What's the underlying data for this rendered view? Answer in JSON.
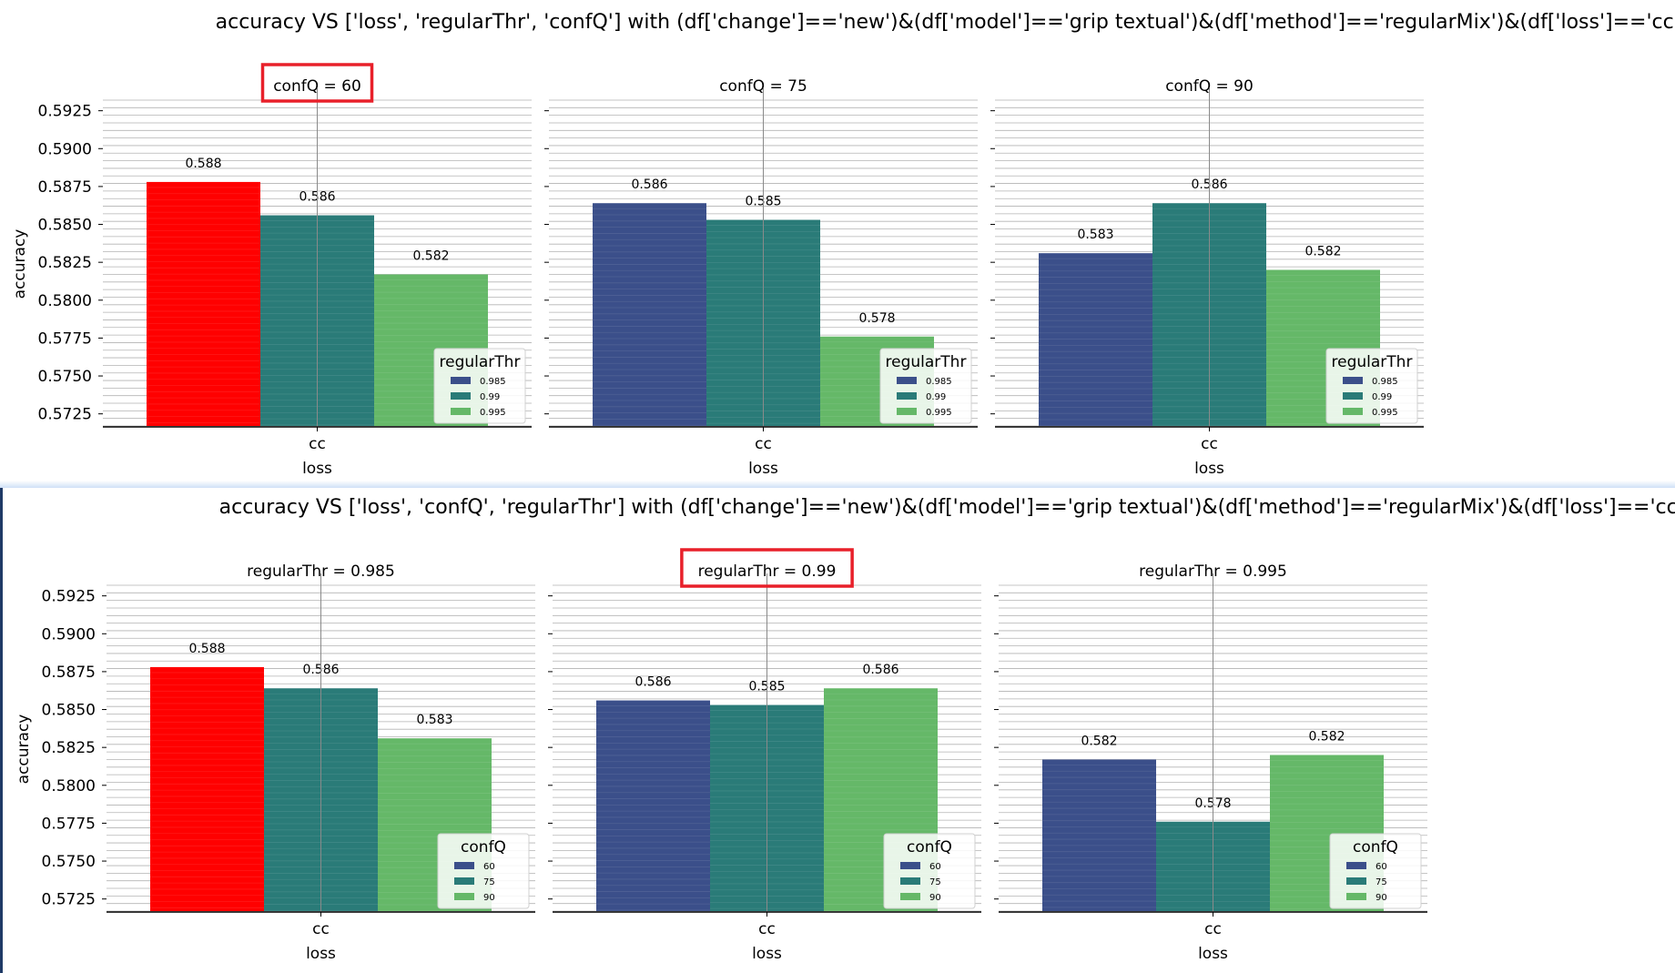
{
  "colors": {
    "c0": "#3b4f8a",
    "c1": "#2a7b78",
    "c2": "#65b868",
    "highlight": "#ff0000",
    "box": "#e8202a"
  },
  "chart_data": [
    {
      "type": "bar",
      "title": "accuracy VS ['loss', 'regularThr', 'confQ'] with (df['change']=='new')&(df['model']=='grip textual')&(df['method']=='regularMix')&(df['loss']=='cc')",
      "ylabel": "accuracy",
      "xlabel": "loss",
      "ylim": [
        0.5717,
        0.5935
      ],
      "yticks": [
        "0.5725",
        "0.5750",
        "0.5775",
        "0.5800",
        "0.5825",
        "0.5850",
        "0.5875",
        "0.5900",
        "0.5925"
      ],
      "grid": true,
      "legend_title": "regularThr",
      "legend_entries": [
        "0.985",
        "0.99",
        "0.995"
      ],
      "legend_position": "lower-right",
      "panels": [
        {
          "title": "confQ = 60",
          "highlighted": true,
          "categories": [
            "cc"
          ],
          "values": [
            0.5878,
            0.5856,
            0.5817
          ],
          "labels": [
            "0.588",
            "0.586",
            "0.582"
          ],
          "highlight_bar": 0
        },
        {
          "title": "confQ = 75",
          "highlighted": false,
          "categories": [
            "cc"
          ],
          "values": [
            0.5864,
            0.5853,
            0.5776
          ],
          "labels": [
            "0.586",
            "0.585",
            "0.578"
          ],
          "highlight_bar": -1
        },
        {
          "title": "confQ = 90",
          "highlighted": false,
          "categories": [
            "cc"
          ],
          "values": [
            0.5831,
            0.5864,
            0.582
          ],
          "labels": [
            "0.583",
            "0.586",
            "0.582"
          ],
          "highlight_bar": -1
        }
      ]
    },
    {
      "type": "bar",
      "title": "accuracy VS ['loss', 'confQ', 'regularThr'] with (df['change']=='new')&(df['model']=='grip textual')&(df['method']=='regularMix')&(df['loss']=='cc')",
      "ylabel": "accuracy",
      "xlabel": "loss",
      "ylim": [
        0.5717,
        0.5935
      ],
      "yticks": [
        "0.5725",
        "0.5750",
        "0.5775",
        "0.5800",
        "0.5825",
        "0.5850",
        "0.5875",
        "0.5900",
        "0.5925"
      ],
      "grid": true,
      "legend_title": "confQ",
      "legend_entries": [
        "60",
        "75",
        "90"
      ],
      "legend_position": "lower-right",
      "panels": [
        {
          "title": "regularThr = 0.985",
          "highlighted": false,
          "categories": [
            "cc"
          ],
          "values": [
            0.5878,
            0.5864,
            0.5831
          ],
          "labels": [
            "0.588",
            "0.586",
            "0.583"
          ],
          "highlight_bar": 0
        },
        {
          "title": "regularThr = 0.99",
          "highlighted": true,
          "categories": [
            "cc"
          ],
          "values": [
            0.5856,
            0.5853,
            0.5864
          ],
          "labels": [
            "0.586",
            "0.585",
            "0.586"
          ],
          "highlight_bar": -1
        },
        {
          "title": "regularThr = 0.995",
          "highlighted": false,
          "categories": [
            "cc"
          ],
          "values": [
            0.5817,
            0.5776,
            0.582
          ],
          "labels": [
            "0.582",
            "0.578",
            "0.582"
          ],
          "highlight_bar": -1
        }
      ]
    }
  ]
}
